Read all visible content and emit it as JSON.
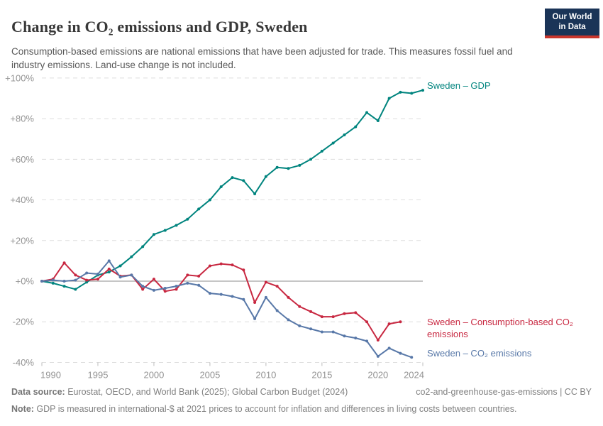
{
  "header": {
    "title": "Change in CO₂ emissions and GDP, Sweden",
    "subtitle": "Consumption-based emissions are national emissions that have been adjusted for trade. This measures fossil fuel and industry emissions. Land-use change is not included.",
    "logo_line1": "Our World",
    "logo_line2": "in Data"
  },
  "chart_data": {
    "type": "line",
    "title": "Change in CO₂ emissions and GDP, Sweden",
    "xlabel": "",
    "ylabel": "",
    "xlim": [
      1990,
      2024
    ],
    "ylim": [
      -40,
      100
    ],
    "grid": "horizontal-dashed",
    "legend_position": "right-of-line-ends",
    "xticks": [
      {
        "value": 1990,
        "label": "1990"
      },
      {
        "value": 1995,
        "label": "1995"
      },
      {
        "value": 2000,
        "label": "2000"
      },
      {
        "value": 2005,
        "label": "2005"
      },
      {
        "value": 2010,
        "label": "2010"
      },
      {
        "value": 2015,
        "label": "2015"
      },
      {
        "value": 2020,
        "label": "2020"
      },
      {
        "value": 2024,
        "label": "2024"
      }
    ],
    "yticks": [
      {
        "value": 100,
        "label": "+100%"
      },
      {
        "value": 80,
        "label": "+80%"
      },
      {
        "value": 60,
        "label": "+60%"
      },
      {
        "value": 40,
        "label": "+40%"
      },
      {
        "value": 20,
        "label": "+20%"
      },
      {
        "value": 0,
        "label": "+0%"
      },
      {
        "value": -20,
        "label": "-20%"
      },
      {
        "value": -40,
        "label": "-40%"
      }
    ],
    "series": [
      {
        "name": "Sweden – GDP",
        "color": "#00847E",
        "start_year": 1990,
        "values": [
          0,
          -1,
          -2.5,
          -4,
          -0.5,
          3,
          4.5,
          7.5,
          12,
          17,
          23,
          25,
          27.5,
          30.5,
          35.5,
          40,
          46.5,
          51,
          49.5,
          43,
          51.5,
          56,
          55.5,
          57,
          60,
          64,
          68,
          72,
          76,
          83,
          79,
          90,
          93,
          92.5,
          94
        ]
      },
      {
        "name": "Sweden – Consumption-based CO₂ emissions",
        "color": "#C82841",
        "start_year": 1990,
        "values": [
          0,
          1,
          9,
          3,
          0.5,
          1,
          6,
          2.5,
          3,
          -4,
          1,
          -5,
          -4,
          3,
          2.5,
          7.5,
          8.5,
          8,
          5.5,
          -10.5,
          -0.5,
          -2.5,
          -8,
          -12.5,
          -15,
          -17.5,
          -17.5,
          -16,
          -15.5,
          -20,
          -29,
          -21,
          -20
        ]
      },
      {
        "name": "Sweden – CO₂ emissions",
        "color": "#5878A8",
        "start_year": 1990,
        "values": [
          0,
          0.5,
          0,
          0.5,
          4,
          3.5,
          10,
          2,
          3,
          -2.5,
          -4.5,
          -3.5,
          -2.5,
          -1,
          -2,
          -6,
          -6.5,
          -7.5,
          -9,
          -18.5,
          -8,
          -14.5,
          -19,
          -22,
          -23.5,
          -25,
          -25,
          -27,
          -28,
          -29.5,
          -37,
          -33,
          -35.5,
          -37.5
        ]
      }
    ]
  },
  "footer": {
    "data_source_label": "Data source:",
    "data_source": " Eurostat, OECD, and World Bank (2025); Global Carbon Budget (2024)",
    "attribution": "co2-and-greenhouse-gas-emissions | CC BY",
    "note_label": "Note:",
    "note": " GDP is measured in international-$ at 2021 prices to account for inflation and differences in living costs between countries."
  },
  "style": {
    "grid_color": "#dedede",
    "zero_line_color": "#8d8d8d",
    "tick_label_color": "#949494",
    "tick_mark_color": "#bcbcbc"
  }
}
